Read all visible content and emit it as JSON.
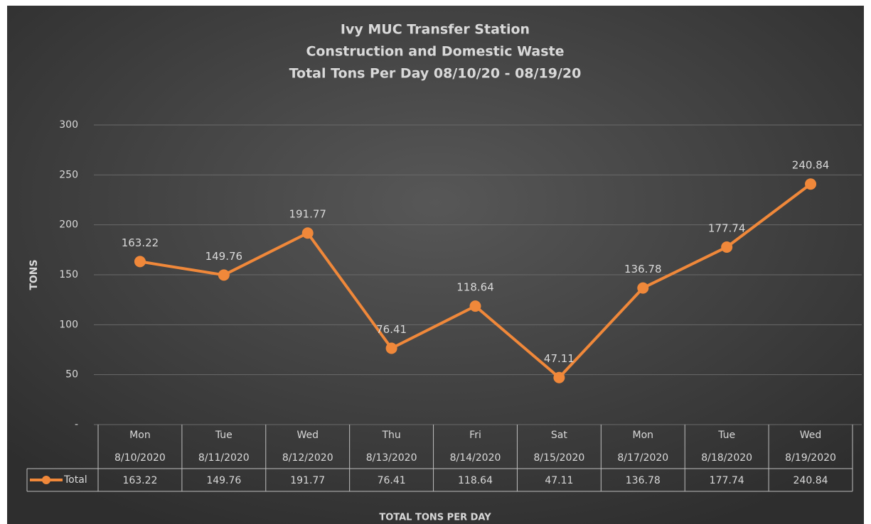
{
  "chart_data": {
    "type": "line",
    "title": [
      "Ivy MUC Transfer Station",
      "Construction and Domestic Waste",
      "Total Tons Per Day 08/10/20 - 08/19/20"
    ],
    "y_label": "TONS",
    "x_label": "TOTAL TONS PER DAY",
    "weekdays": [
      "Mon",
      "Tue",
      "Wed",
      "Thu",
      "Fri",
      "Sat",
      "Mon",
      "Tue",
      "Wed"
    ],
    "categories": [
      "8/10/2020",
      "8/11/2020",
      "8/12/2020",
      "8/13/2020",
      "8/14/2020",
      "8/15/2020",
      "8/17/2020",
      "8/18/2020",
      "8/19/2020"
    ],
    "series": [
      {
        "name": "Total",
        "color": "#f0883a",
        "values": [
          163.22,
          149.76,
          191.77,
          76.41,
          118.64,
          47.11,
          136.78,
          177.74,
          240.84
        ]
      }
    ],
    "ylim": [
      0,
      300
    ],
    "yticks": [
      {
        "value": 0,
        "label": "-"
      },
      50,
      100,
      150,
      200,
      250,
      300
    ],
    "grid": true
  }
}
